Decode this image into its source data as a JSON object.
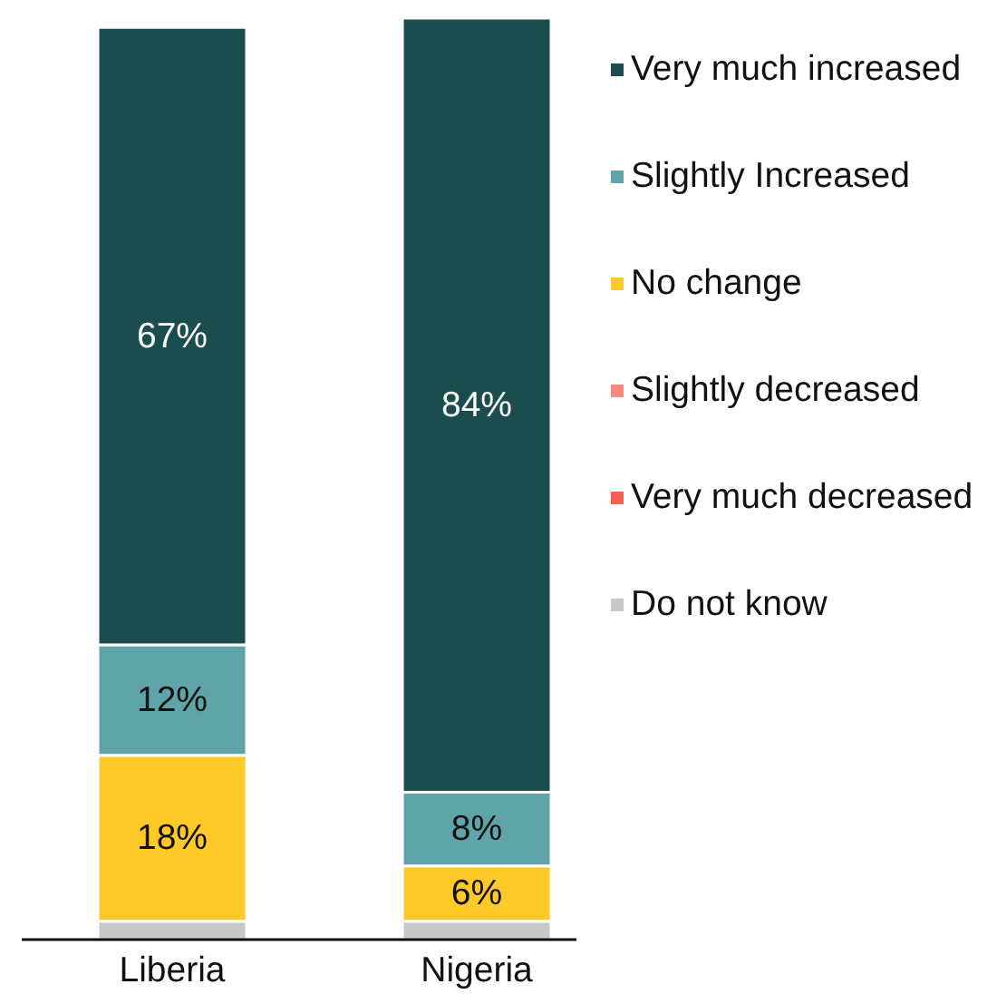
{
  "chart_data": {
    "type": "bar",
    "stacked": true,
    "categories": [
      "Liberia",
      "Nigeria"
    ],
    "legend": "right",
    "series": [
      {
        "name": "Do not know",
        "color": "#c8c8c8",
        "values": [
          2,
          2
        ]
      },
      {
        "name": "Very much decreased",
        "color": "#f4604f",
        "values": [
          0,
          0
        ]
      },
      {
        "name": "Slightly decreased",
        "color": "#fa8a80",
        "values": [
          0,
          0
        ]
      },
      {
        "name": "No change",
        "color": "#ffca28",
        "values": [
          18,
          6
        ],
        "value_labels": [
          "18%",
          "6%"
        ]
      },
      {
        "name": "Slightly Increased",
        "color": "#5fa4a8",
        "values": [
          12,
          8
        ],
        "value_labels": [
          "12%",
          "8%"
        ]
      },
      {
        "name": "Very much increased",
        "color": "#1b4d4f",
        "values": [
          67,
          84
        ],
        "value_labels": [
          "67%",
          "84%"
        ]
      }
    ]
  }
}
